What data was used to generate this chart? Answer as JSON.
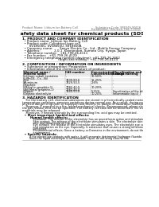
{
  "title": "Safety data sheet for chemical products (SDS)",
  "header_left": "Product Name: Lithium Ion Battery Cell",
  "header_right_line1": "Substance Code: SRF049-00616",
  "header_right_line2": "Established / Revision: Dec.7,2010",
  "section1_title": "1. PRODUCT AND COMPANY IDENTIFICATION",
  "section1_lines": [
    "  • Product name: Lithium Ion Battery Cell",
    "  • Product code: Cylindrical-type cell",
    "       SV18500U, SV18650U, SV18650A",
    "  • Company name:       Sanyo Electric Co., Ltd., Mobile Energy Company",
    "  • Address:              2-0-1  Kannondori, Sumoto City, Hyogo, Japan",
    "  • Telephone number:   +81-799-26-4111",
    "  • Fax number:   +81-799-26-4129",
    "  • Emergency telephone number (daytime): +81-799-26-3662",
    "                                    (Night and holiday): +81-799-26-4124"
  ],
  "section2_title": "2. COMPOSITION / INFORMATION ON INGREDIENTS",
  "section2_intro": "  • Substance or preparation: Preparation",
  "section2_sub": "  • Information about the chemical nature of product:",
  "table_col0": [
    "Chemical name /",
    "Mineral name"
  ],
  "table_col1": [
    "CAS number",
    ""
  ],
  "table_col2": [
    "Concentration /",
    "Concentration range"
  ],
  "table_col3": [
    "Classification and",
    "hazard labeling"
  ],
  "table_rows": [
    [
      "Lithium cobalt tantalate",
      "-",
      "30-50%",
      ""
    ],
    [
      "(LiMnO4...Co...Ni)",
      "",
      "",
      ""
    ],
    [
      "Iron",
      "7439-89-6",
      "15-25%",
      "-"
    ],
    [
      "Aluminum",
      "7429-90-5",
      "2-6%",
      "-"
    ],
    [
      "Graphite",
      "",
      "",
      ""
    ],
    [
      "(Metal in graphite-1)",
      "7782-42-5",
      "10-20%",
      "-"
    ],
    [
      "(All-Metal graphite-1)",
      "7782-44-0",
      "",
      ""
    ],
    [
      "Copper",
      "7440-50-8",
      "5-15%",
      "Sensitization of the skin group No.2"
    ],
    [
      "Organic electrolyte",
      "-",
      "10-20%",
      "Inflammable liquid"
    ]
  ],
  "section3_title": "3. HAZARDS IDENTIFICATION",
  "section3_lines": [
    "    For the battery cell, chemical substances are stored in a hermetically-sealed metal case, designed to withstand",
    "temperature variations, pressure variations during normal use. As a result, during normal use, there is no",
    "physical danger of ignition or explosion and there is no danger of hazardous materials leakage.",
    "    However, if exposed to a fire, added mechanical shocks, decompressed, where electric and/or dry materials use,",
    "the gas release vent can be operated. The battery cell case will be breached if fire starts. Hazardous",
    "materials may be released.",
    "    Moreover, if heated strongly by the surrounding fire, acid gas may be emitted."
  ],
  "section3_bullet1": "  • Most important hazard and effects:",
  "section3_human": "        Human health effects:",
  "section3_human_lines": [
    "            Inhalation: The release of the electrolyte has an anaesthesia action and stimulates a respiratory tract.",
    "            Skin contact: The release of the electrolyte stimulates a skin. The electrolyte skin contact causes a",
    "            sore and stimulation on the skin.",
    "            Eye contact: The release of the electrolyte stimulates eyes. The electrolyte eye contact causes a sore",
    "            and stimulation on the eye. Especially, a substance that causes a strong inflammation of the eye is",
    "            contained.",
    "            Environmental effects: Since a battery cell remains in the environment, do not throw out it into the",
    "            environment."
  ],
  "section3_specific": "  • Specific hazards:",
  "section3_specific_lines": [
    "        If the electrolyte contacts with water, it will generate detrimental hydrogen fluoride.",
    "        Since the liquid electrolyte is inflammable liquid, do not bring close to fire."
  ],
  "bg_color": "#ffffff",
  "text_color": "#000000",
  "gray_text": "#666666",
  "table_header_bg": "#e8e8e8",
  "table_alt_bg": "#f5f5f5",
  "line_color": "#999999"
}
